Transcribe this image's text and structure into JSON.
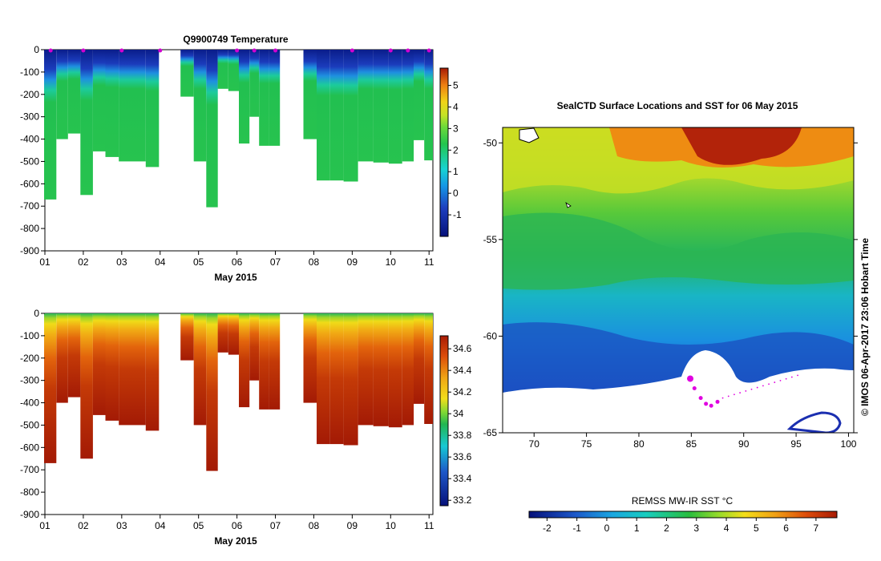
{
  "figure": {
    "credit": "© IMOS 06-Apr-2017 23:06 Hobart Time"
  },
  "chart_data": [
    {
      "type": "heatmap",
      "title": "Q9900749  Temperature",
      "xlabel": "May 2015",
      "ylabel": "",
      "x_ticks": [
        "01",
        "02",
        "03",
        "04",
        "05",
        "06",
        "07",
        "08",
        "09",
        "10",
        "11"
      ],
      "xlim": [
        1.0,
        11.1
      ],
      "y_ticks": [
        0,
        -100,
        -200,
        -300,
        -400,
        -500,
        -600,
        -700,
        -800,
        -900
      ],
      "ylim": [
        -900,
        0
      ],
      "colorbar_ticks": [
        5,
        4,
        3,
        2,
        1,
        0,
        -1
      ],
      "colorbar_range": [
        -2,
        5.8
      ],
      "profiles": [
        {
          "day": 1.15,
          "max_depth": 670
        },
        {
          "day": 1.45,
          "max_depth": 400
        },
        {
          "day": 1.75,
          "max_depth": 375
        },
        {
          "day": 2.1,
          "max_depth": 650
        },
        {
          "day": 2.4,
          "max_depth": 455
        },
        {
          "day": 2.75,
          "max_depth": 480
        },
        {
          "day": 3.1,
          "max_depth": 500
        },
        {
          "day": 3.45,
          "max_depth": 500
        },
        {
          "day": 3.8,
          "max_depth": 525
        },
        {
          "day": 4.7,
          "max_depth": 210
        },
        {
          "day": 5.05,
          "max_depth": 500
        },
        {
          "day": 5.35,
          "max_depth": 705
        },
        {
          "day": 5.65,
          "max_depth": 175
        },
        {
          "day": 5.9,
          "max_depth": 185
        },
        {
          "day": 6.2,
          "max_depth": 420
        },
        {
          "day": 6.45,
          "max_depth": 300
        },
        {
          "day": 6.7,
          "max_depth": 430
        },
        {
          "day": 6.95,
          "max_depth": 430
        },
        {
          "day": 7.9,
          "max_depth": 400
        },
        {
          "day": 8.25,
          "max_depth": 585
        },
        {
          "day": 8.6,
          "max_depth": 585
        },
        {
          "day": 8.95,
          "max_depth": 590
        },
        {
          "day": 9.35,
          "max_depth": 500
        },
        {
          "day": 9.75,
          "max_depth": 505
        },
        {
          "day": 10.15,
          "max_depth": 510
        },
        {
          "day": 10.45,
          "max_depth": 500
        },
        {
          "day": 10.75,
          "max_depth": 405
        },
        {
          "day": 11.0,
          "max_depth": 495
        }
      ]
    },
    {
      "type": "heatmap",
      "title": "",
      "xlabel": "May 2015",
      "ylabel": "",
      "x_ticks": [
        "01",
        "02",
        "03",
        "04",
        "05",
        "06",
        "07",
        "08",
        "09",
        "10",
        "11"
      ],
      "xlim": [
        1.0,
        11.1
      ],
      "y_ticks": [
        0,
        -100,
        -200,
        -300,
        -400,
        -500,
        -600,
        -700,
        -800,
        -900
      ],
      "ylim": [
        -900,
        0
      ],
      "colorbar_ticks": [
        34.6,
        34.4,
        34.2,
        34,
        33.8,
        33.6,
        33.4,
        33.2
      ],
      "colorbar_range": [
        33.15,
        34.72
      ],
      "profiles": "same profile positions and depths as the temperature section"
    },
    {
      "type": "heatmap",
      "title": "SealCTD Surface Locations and SST for 06 May 2015",
      "xlabel": "",
      "ylabel": "",
      "x_ticks": [
        70,
        75,
        80,
        85,
        90,
        95,
        100
      ],
      "xlim": [
        67,
        100.5
      ],
      "y_ticks": [
        -50,
        -55,
        -60,
        -65
      ],
      "ylim": [
        -65,
        -49.2
      ],
      "colorbar_label": "REMSS MW-IR SST °C",
      "colorbar_ticks": [
        -2,
        -1,
        0,
        1,
        2,
        3,
        4,
        5,
        6,
        7
      ],
      "colorbar_range": [
        -2.6,
        7.7
      ],
      "track_points": [
        {
          "lon": 84.9,
          "lat": -62.2
        },
        {
          "lon": 85.3,
          "lat": -62.7
        },
        {
          "lon": 85.9,
          "lat": -63.2
        },
        {
          "lon": 86.4,
          "lat": -63.5
        },
        {
          "lon": 86.9,
          "lat": -63.6
        },
        {
          "lon": 87.5,
          "lat": -63.4
        }
      ]
    }
  ]
}
